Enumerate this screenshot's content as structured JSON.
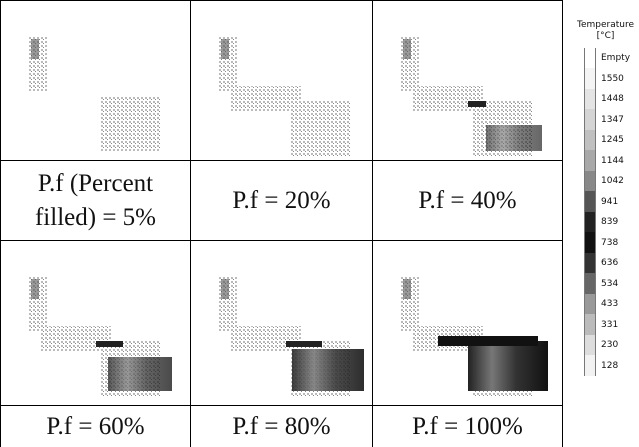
{
  "panels": [
    {
      "caption": "P.f (Percent filled) = 5%"
    },
    {
      "caption": "P.f = 20%"
    },
    {
      "caption": "P.f = 40%"
    },
    {
      "caption": "P.f = 60%"
    },
    {
      "caption": "P.f = 80%"
    },
    {
      "caption": "P.f = 100%"
    }
  ],
  "legend": {
    "title": [
      "Temperature",
      "[°C]"
    ],
    "labels": [
      "Empty",
      "1550",
      "1448",
      "1347",
      "1245",
      "1144",
      "1042",
      "941",
      "839",
      "738",
      "636",
      "534",
      "433",
      "331",
      "230",
      "128"
    ]
  }
}
